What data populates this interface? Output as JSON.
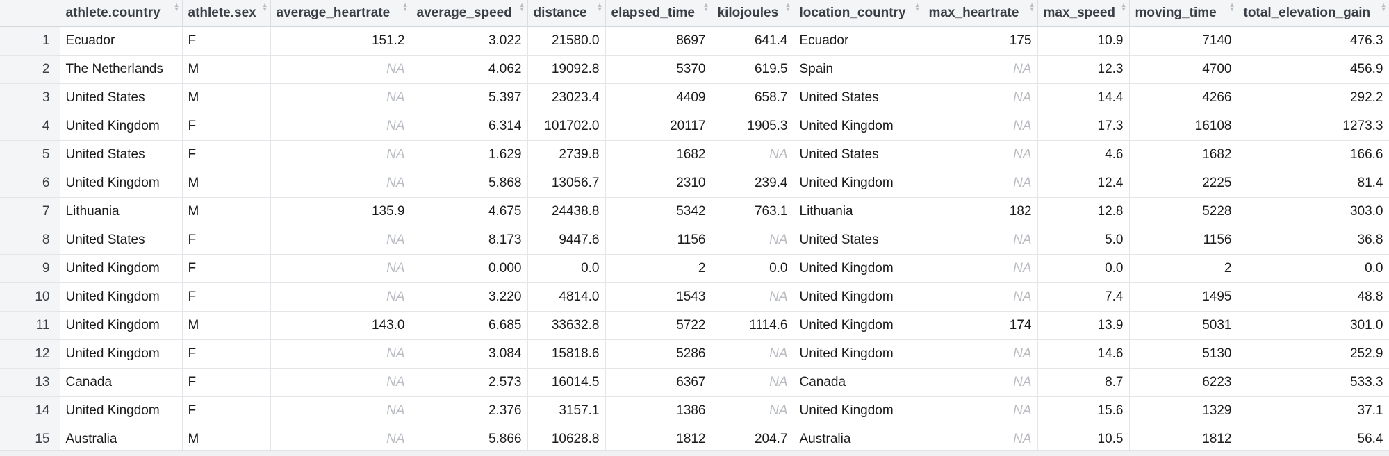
{
  "columns": [
    {
      "key": "athlete_country",
      "label": "athlete.country",
      "align": "left",
      "width": 176
    },
    {
      "key": "athlete_sex",
      "label": "athlete.sex",
      "align": "left",
      "width": 127
    },
    {
      "key": "average_heartrate",
      "label": "average_heartrate",
      "align": "right",
      "width": 202
    },
    {
      "key": "average_speed",
      "label": "average_speed",
      "align": "right",
      "width": 168
    },
    {
      "key": "distance",
      "label": "distance",
      "align": "right",
      "width": 112
    },
    {
      "key": "elapsed_time",
      "label": "elapsed_time",
      "align": "right",
      "width": 153
    },
    {
      "key": "kilojoules",
      "label": "kilojoules",
      "align": "right",
      "width": 118
    },
    {
      "key": "location_country",
      "label": "location_country",
      "align": "left",
      "width": 186
    },
    {
      "key": "max_heartrate",
      "label": "max_heartrate",
      "align": "right",
      "width": 165
    },
    {
      "key": "max_speed",
      "label": "max_speed",
      "align": "right",
      "width": 132
    },
    {
      "key": "moving_time",
      "label": "moving_time",
      "align": "right",
      "width": 156
    },
    {
      "key": "total_elevation_gain",
      "label": "total_elevation_gain",
      "align": "right",
      "width": 218
    }
  ],
  "na_label": "NA",
  "rows": [
    {
      "n": "1",
      "cells": [
        "Ecuador",
        "F",
        "151.2",
        "3.022",
        "21580.0",
        "8697",
        "641.4",
        "Ecuador",
        "175",
        "10.9",
        "7140",
        "476.3"
      ]
    },
    {
      "n": "2",
      "cells": [
        "The Netherlands",
        "M",
        null,
        "4.062",
        "19092.8",
        "5370",
        "619.5",
        "Spain",
        null,
        "12.3",
        "4700",
        "456.9"
      ]
    },
    {
      "n": "3",
      "cells": [
        "United States",
        "M",
        null,
        "5.397",
        "23023.4",
        "4409",
        "658.7",
        "United States",
        null,
        "14.4",
        "4266",
        "292.2"
      ]
    },
    {
      "n": "4",
      "cells": [
        "United Kingdom",
        "F",
        null,
        "6.314",
        "101702.0",
        "20117",
        "1905.3",
        "United Kingdom",
        null,
        "17.3",
        "16108",
        "1273.3"
      ]
    },
    {
      "n": "5",
      "cells": [
        "United States",
        "F",
        null,
        "1.629",
        "2739.8",
        "1682",
        null,
        "United States",
        null,
        "4.6",
        "1682",
        "166.6"
      ]
    },
    {
      "n": "6",
      "cells": [
        "United Kingdom",
        "M",
        null,
        "5.868",
        "13056.7",
        "2310",
        "239.4",
        "United Kingdom",
        null,
        "12.4",
        "2225",
        "81.4"
      ]
    },
    {
      "n": "7",
      "cells": [
        "Lithuania",
        "M",
        "135.9",
        "4.675",
        "24438.8",
        "5342",
        "763.1",
        "Lithuania",
        "182",
        "12.8",
        "5228",
        "303.0"
      ]
    },
    {
      "n": "8",
      "cells": [
        "United States",
        "F",
        null,
        "8.173",
        "9447.6",
        "1156",
        null,
        "United States",
        null,
        "5.0",
        "1156",
        "36.8"
      ]
    },
    {
      "n": "9",
      "cells": [
        "United Kingdom",
        "F",
        null,
        "0.000",
        "0.0",
        "2",
        "0.0",
        "United Kingdom",
        null,
        "0.0",
        "2",
        "0.0"
      ]
    },
    {
      "n": "10",
      "cells": [
        "United Kingdom",
        "F",
        null,
        "3.220",
        "4814.0",
        "1543",
        null,
        "United Kingdom",
        null,
        "7.4",
        "1495",
        "48.8"
      ]
    },
    {
      "n": "11",
      "cells": [
        "United Kingdom",
        "M",
        "143.0",
        "6.685",
        "33632.8",
        "5722",
        "1114.6",
        "United Kingdom",
        "174",
        "13.9",
        "5031",
        "301.0"
      ]
    },
    {
      "n": "12",
      "cells": [
        "United Kingdom",
        "F",
        null,
        "3.084",
        "15818.6",
        "5286",
        null,
        "United Kingdom",
        null,
        "14.6",
        "5130",
        "252.9"
      ]
    },
    {
      "n": "13",
      "cells": [
        "Canada",
        "F",
        null,
        "2.573",
        "16014.5",
        "6367",
        null,
        "Canada",
        null,
        "8.7",
        "6223",
        "533.3"
      ]
    },
    {
      "n": "14",
      "cells": [
        "United Kingdom",
        "F",
        null,
        "2.376",
        "3157.1",
        "1386",
        null,
        "United Kingdom",
        null,
        "15.6",
        "1329",
        "37.1"
      ]
    },
    {
      "n": "15",
      "cells": [
        "Australia",
        "M",
        null,
        "5.866",
        "10628.8",
        "1812",
        "204.7",
        "Australia",
        null,
        "10.5",
        "1812",
        "56.4"
      ]
    }
  ]
}
